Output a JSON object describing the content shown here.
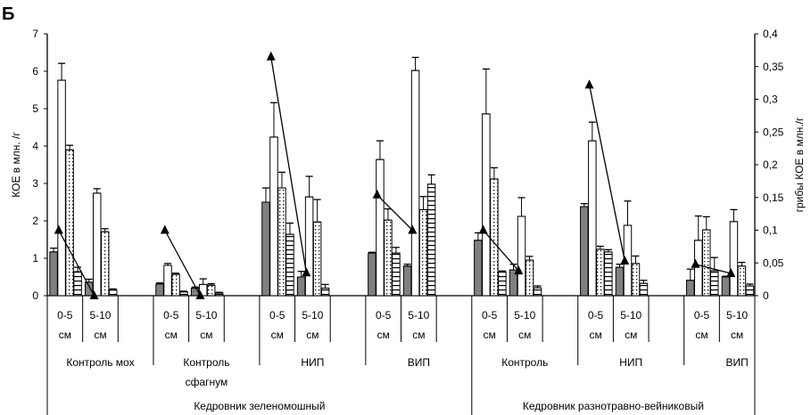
{
  "panel_label": "Б",
  "chart_data": {
    "type": "bar",
    "ylabel": "КОЕ в млн. /г",
    "y2label": "грибы КОЕ в млн./г",
    "ylim": [
      0,
      7
    ],
    "y2lim": [
      0,
      0.4
    ],
    "yticks": [
      "0",
      "1",
      "2",
      "3",
      "4",
      "5",
      "6",
      "7"
    ],
    "y2ticks": [
      "0",
      "0,05",
      "0,1",
      "0,15",
      "0,2",
      "0,25",
      "0,3",
      "0,35",
      "0,4"
    ],
    "grid": false,
    "legend": "none",
    "colors": {
      "bar_fill_1": "#808080",
      "bar_fill_2": "#ffffff",
      "outline": "#000000"
    },
    "bar_styles": [
      "gray-solid",
      "white",
      "dotted",
      "horizontal-stripes"
    ],
    "line_style": "triangle-markers",
    "sites": [
      {
        "label": "Кедровник зеленомошный",
        "groups": [
          {
            "label": "Контроль мох",
            "depths": [
              {
                "label": [
                  "0-5",
                  "см"
                ],
                "bars": [
                  1.17,
                  5.76,
                  3.9,
                  0.64
                ],
                "errors": [
                  0.1,
                  0.45,
                  0.12,
                  0.12
                ],
                "fungi": 0.1
              },
              {
                "label": [
                  "5-10",
                  "см"
                ],
                "bars": [
                  0.36,
                  2.74,
                  1.71,
                  0.15
                ],
                "errors": [
                  0.08,
                  0.12,
                  0.08,
                  0.03
                ],
                "fungi": 0.0
              }
            ]
          },
          {
            "label": "Контроль сфагнум",
            "depths": [
              {
                "label": [
                  "0-5",
                  "см"
                ],
                "bars": [
                  0.31,
                  0.81,
                  0.57,
                  0.1
                ],
                "errors": [
                  0.03,
                  0.05,
                  0.03,
                  0.02
                ],
                "fungi": 0.1
              },
              {
                "label": [
                  "5-10",
                  "см"
                ],
                "bars": [
                  0.2,
                  0.3,
                  0.28,
                  0.07
                ],
                "errors": [
                  0.03,
                  0.15,
                  0.04,
                  0.02
                ],
                "fungi": 0.0
              }
            ]
          },
          {
            "label": "НИП",
            "depths": [
              {
                "label": [
                  "0-5",
                  "см"
                ],
                "bars": [
                  2.5,
                  4.24,
                  2.88,
                  1.64
                ],
                "errors": [
                  0.38,
                  0.92,
                  0.42,
                  0.3
                ],
                "fungi": 0.365
              },
              {
                "label": [
                  "5-10",
                  "см"
                ],
                "bars": [
                  0.5,
                  2.64,
                  1.97,
                  0.2
                ],
                "errors": [
                  0.15,
                  0.55,
                  0.6,
                  0.1
                ],
                "fungi": 0.035
              }
            ]
          },
          {
            "label": "ВИП",
            "depths": [
              {
                "label": [
                  "0-5",
                  "см"
                ],
                "bars": [
                  1.14,
                  3.64,
                  2.02,
                  1.14
                ],
                "errors": [
                  0.02,
                  0.5,
                  0.3,
                  0.15
                ],
                "fungi": 0.154
              },
              {
                "label": [
                  "5-10",
                  "см"
                ],
                "bars": [
                  0.79,
                  6.02,
                  2.3,
                  2.98
                ],
                "errors": [
                  0.05,
                  0.35,
                  0.35,
                  0.25
                ],
                "fungi": 0.1
              }
            ]
          }
        ]
      },
      {
        "label": "Кедровник разнотравно-вейниковый",
        "groups": [
          {
            "label": "Контроль",
            "depths": [
              {
                "label": [
                  "0-5",
                  "см"
                ],
                "bars": [
                  1.48,
                  4.86,
                  3.12,
                  0.64
                ],
                "errors": [
                  0.2,
                  1.2,
                  0.3,
                  0.02
                ],
                "fungi": 0.1
              },
              {
                "label": [
                  "5-10",
                  "см"
                ],
                "bars": [
                  0.69,
                  2.12,
                  0.95,
                  0.21
                ],
                "errors": [
                  0.15,
                  0.5,
                  0.1,
                  0.05
                ],
                "fungi": 0.038
              }
            ]
          },
          {
            "label": "НИП",
            "depths": [
              {
                "label": [
                  "0-5",
                  "см"
                ],
                "bars": [
                  2.38,
                  4.14,
                  1.24,
                  1.17
                ],
                "errors": [
                  0.08,
                  0.5,
                  0.08,
                  0.06
                ],
                "fungi": 0.322
              },
              {
                "label": [
                  "5-10",
                  "см"
                ],
                "bars": [
                  0.76,
                  1.88,
                  0.86,
                  0.33
                ],
                "errors": [
                  0.08,
                  0.65,
                  0.2,
                  0.08
                ],
                "fungi": 0.053
              }
            ]
          },
          {
            "label": "ВИП",
            "depths": [
              {
                "label": [
                  "0-5",
                  "см"
                ],
                "bars": [
                  0.41,
                  1.48,
                  1.76,
                  0.67
                ],
                "errors": [
                  0.3,
                  0.65,
                  0.35,
                  0.35
                ],
                "fungi": 0.048
              },
              {
                "label": [
                  "5-10",
                  "см"
                ],
                "bars": [
                  0.5,
                  1.98,
                  0.79,
                  0.26
                ],
                "errors": [
                  0.02,
                  0.32,
                  0.1,
                  0.05
                ],
                "fungi": 0.034
              }
            ]
          }
        ]
      }
    ]
  }
}
